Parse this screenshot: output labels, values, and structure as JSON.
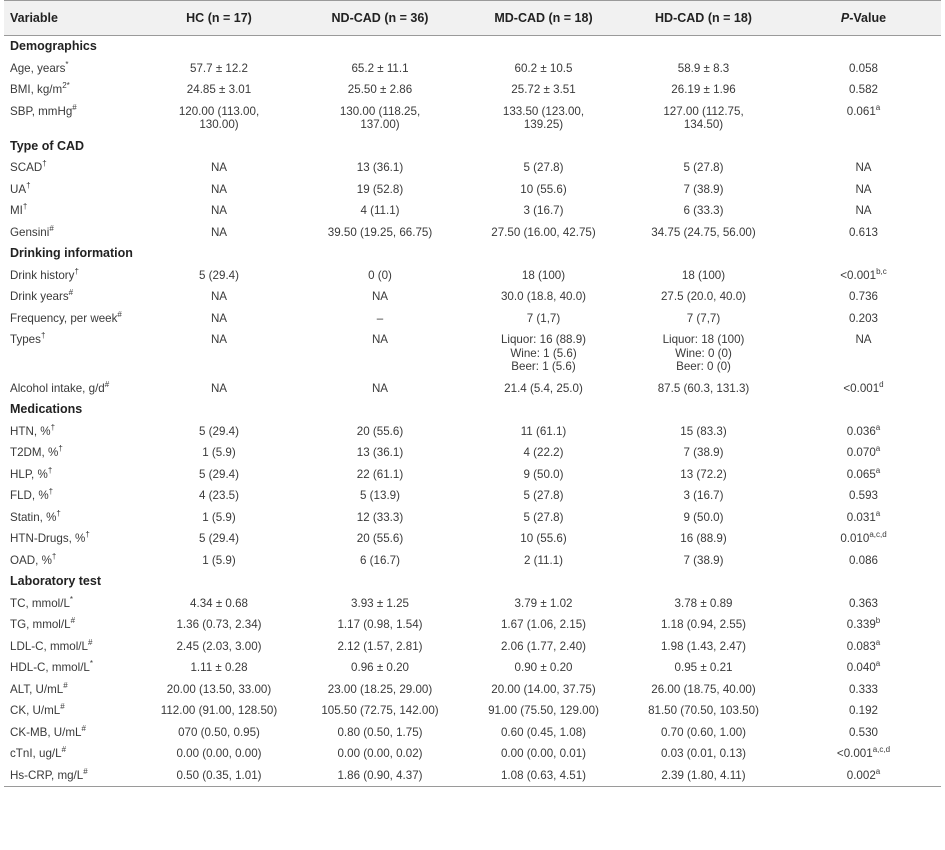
{
  "header": {
    "variable": "Variable",
    "hc": "HC",
    "hc_n": "(n = 17)",
    "nd": "ND-CAD",
    "nd_n": "(n = 36)",
    "md": "MD-CAD",
    "md_n": "(n = 18)",
    "hd": "HD-CAD",
    "hd_n": "(n = 18)",
    "p_main": "P",
    "p_rest": "-Value"
  },
  "rows": [
    {
      "type": "section",
      "label": "Demographics"
    },
    {
      "label": "Age, years",
      "sup": "*",
      "hc": "57.7 ± 12.2",
      "nd": "65.2 ± 11.1",
      "md": "60.2 ± 10.5",
      "hd": "58.9 ± 8.3",
      "p": "0.058",
      "psup": ""
    },
    {
      "label": "BMI, kg/m",
      "labelsup2": "2",
      "sup": "*",
      "hc": "24.85 ± 3.01",
      "nd": "25.50 ± 2.86",
      "md": "25.72 ± 3.51",
      "hd": "26.19 ± 1.96",
      "p": "0.582",
      "psup": ""
    },
    {
      "label": "SBP, mmHg",
      "sup": "#",
      "hc": "120.00 (113.00,\n130.00)",
      "nd": "130.00 (118.25,\n137.00)",
      "md": "133.50 (123.00,\n139.25)",
      "hd": "127.00 (112.75,\n134.50)",
      "p": "0.061",
      "psup": "a"
    },
    {
      "type": "section",
      "label": "Type of CAD"
    },
    {
      "label": "SCAD",
      "sup": "†",
      "hc": "NA",
      "nd": "13 (36.1)",
      "md": "5 (27.8)",
      "hd": "5 (27.8)",
      "p": "NA",
      "psup": ""
    },
    {
      "label": "UA",
      "sup": "†",
      "hc": "NA",
      "nd": "19 (52.8)",
      "md": "10 (55.6)",
      "hd": "7 (38.9)",
      "p": "NA",
      "psup": ""
    },
    {
      "label": "MI",
      "sup": "†",
      "hc": "NA",
      "nd": "4 (11.1)",
      "md": "3 (16.7)",
      "hd": "6 (33.3)",
      "p": "NA",
      "psup": ""
    },
    {
      "label": "Gensini",
      "sup": "#",
      "hc": "NA",
      "nd": "39.50 (19.25, 66.75)",
      "md": "27.50 (16.00, 42.75)",
      "hd": "34.75 (24.75, 56.00)",
      "p": "0.613",
      "psup": ""
    },
    {
      "type": "section",
      "label": "Drinking information"
    },
    {
      "label": "Drink history",
      "sup": "†",
      "hc": "5 (29.4)",
      "nd": "0 (0)",
      "md": "18 (100)",
      "hd": "18 (100)",
      "p": "<0.001",
      "psup": "b,c"
    },
    {
      "label": "Drink years",
      "sup": "#",
      "hc": "NA",
      "nd": "NA",
      "md": "30.0 (18.8, 40.0)",
      "hd": "27.5 (20.0, 40.0)",
      "p": "0.736",
      "psup": ""
    },
    {
      "label": "Frequency, per week",
      "sup": "#",
      "hc": "NA",
      "nd": "–",
      "md": "7 (1,7)",
      "hd": "7 (7,7)",
      "p": "0.203",
      "psup": ""
    },
    {
      "label": "Types",
      "sup": "†",
      "hc": "NA",
      "nd": "NA",
      "md": "Liquor: 16 (88.9)\nWine: 1 (5.6)\nBeer: 1 (5.6)",
      "hd": "Liquor: 18 (100)\nWine: 0 (0)\nBeer: 0 (0)",
      "p": "NA",
      "psup": ""
    },
    {
      "label": "Alcohol intake, g/d",
      "sup": "#",
      "hc": "NA",
      "nd": "NA",
      "md": "21.4 (5.4, 25.0)",
      "hd": "87.5 (60.3, 131.3)",
      "p": "<0.001",
      "psup": "d"
    },
    {
      "type": "section",
      "label": "Medications"
    },
    {
      "label": "HTN, %",
      "sup": "†",
      "hc": "5 (29.4)",
      "nd": "20 (55.6)",
      "md": "11 (61.1)",
      "hd": "15 (83.3)",
      "p": "0.036",
      "psup": "a"
    },
    {
      "label": "T2DM, %",
      "sup": "†",
      "hc": "1 (5.9)",
      "nd": "13 (36.1)",
      "md": "4 (22.2)",
      "hd": "7 (38.9)",
      "p": "0.070",
      "psup": "a"
    },
    {
      "label": "HLP, %",
      "sup": "†",
      "hc": "5 (29.4)",
      "nd": "22 (61.1)",
      "md": "9 (50.0)",
      "hd": "13 (72.2)",
      "p": "0.065",
      "psup": "a"
    },
    {
      "label": "FLD, %",
      "sup": "†",
      "hc": "4 (23.5)",
      "nd": "5 (13.9)",
      "md": "5 (27.8)",
      "hd": "3 (16.7)",
      "p": "0.593",
      "psup": ""
    },
    {
      "label": "Statin, %",
      "sup": "†",
      "hc": "1 (5.9)",
      "nd": "12 (33.3)",
      "md": "5 (27.8)",
      "hd": "9 (50.0)",
      "p": "0.031",
      "psup": "a"
    },
    {
      "label": "HTN-Drugs, %",
      "sup": "†",
      "hc": "5 (29.4)",
      "nd": "20 (55.6)",
      "md": "10 (55.6)",
      "hd": "16 (88.9)",
      "p": "0.010",
      "psup": "a,c,d"
    },
    {
      "label": "OAD, %",
      "sup": "†",
      "hc": "1 (5.9)",
      "nd": "6 (16.7)",
      "md": "2 (11.1)",
      "hd": "7 (38.9)",
      "p": "0.086",
      "psup": ""
    },
    {
      "type": "section",
      "label": "Laboratory test"
    },
    {
      "label": "TC, mmol/L",
      "sup": "*",
      "hc": "4.34 ± 0.68",
      "nd": "3.93 ± 1.25",
      "md": "3.79 ± 1.02",
      "hd": "3.78 ± 0.89",
      "p": "0.363",
      "psup": ""
    },
    {
      "label": "TG, mmol/L",
      "sup": "#",
      "hc": "1.36 (0.73, 2.34)",
      "nd": "1.17 (0.98, 1.54)",
      "md": "1.67 (1.06, 2.15)",
      "hd": "1.18 (0.94, 2.55)",
      "p": "0.339",
      "psup": "b"
    },
    {
      "label": "LDL-C, mmol/L",
      "sup": "#",
      "hc": "2.45 (2.03, 3.00)",
      "nd": "2.12 (1.57, 2.81)",
      "md": "2.06 (1.77, 2.40)",
      "hd": "1.98 (1.43, 2.47)",
      "p": "0.083",
      "psup": "a"
    },
    {
      "label": "HDL-C, mmol/L",
      "sup": "*",
      "hc": "1.11 ± 0.28",
      "nd": "0.96 ± 0.20",
      "md": "0.90 ± 0.20",
      "hd": "0.95 ± 0.21",
      "p": "0.040",
      "psup": "a"
    },
    {
      "label": "ALT, U/mL",
      "sup": "#",
      "hc": "20.00 (13.50, 33.00)",
      "nd": "23.00 (18.25, 29.00)",
      "md": "20.00 (14.00, 37.75)",
      "hd": "26.00 (18.75, 40.00)",
      "p": "0.333",
      "psup": ""
    },
    {
      "label": "CK, U/mL",
      "sup": "#",
      "hc": "112.00 (91.00, 128.50)",
      "nd": "105.50 (72.75, 142.00)",
      "md": "91.00 (75.50, 129.00)",
      "hd": "81.50 (70.50, 103.50)",
      "p": "0.192",
      "psup": ""
    },
    {
      "label": "CK-MB, U/mL",
      "sup": "#",
      "hc": "070 (0.50, 0.95)",
      "nd": "0.80 (0.50, 1.75)",
      "md": "0.60 (0.45, 1.08)",
      "hd": "0.70 (0.60, 1.00)",
      "p": "0.530",
      "psup": ""
    },
    {
      "label": "cTnI, ug/L",
      "sup": "#",
      "hc": "0.00 (0.00, 0.00)",
      "nd": "0.00 (0.00, 0.02)",
      "md": "0.00 (0.00, 0.01)",
      "hd": "0.03 (0.01, 0.13)",
      "p": "<0.001",
      "psup": "a,c,d"
    },
    {
      "label": "Hs-CRP, mg/L",
      "sup": "#",
      "hc": "0.50 (0.35, 1.01)",
      "nd": "1.86 (0.90, 4.37)",
      "md": "1.08 (0.63, 4.51)",
      "hd": "2.39 (1.80, 4.11)",
      "p": "0.002",
      "psup": "a"
    }
  ]
}
